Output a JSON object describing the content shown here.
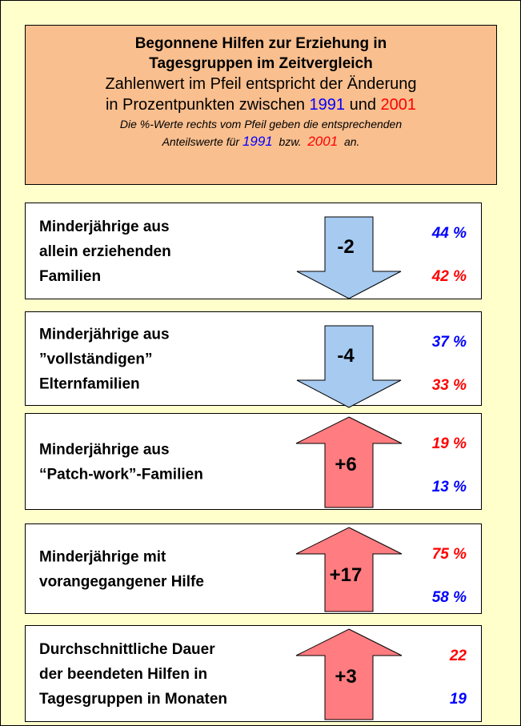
{
  "header": {
    "title": [
      "Begonnene Hilfen zur Erziehung in",
      "Tagesgruppen im Zeitvergleich"
    ],
    "subtitle_line1": "Zahlenwert im Pfeil entspricht der Änderung",
    "subtitle_line2": {
      "text": "in Prozentpunkten zwischen",
      "year1": "1991",
      "and": "und",
      "year2": "2001"
    },
    "note_line1": "Die %-Werte rechts vom Pfeil geben die entsprechenden",
    "note_line2": {
      "text": "Anteilswerte für",
      "year1": "1991",
      "or": "bzw.",
      "year2": "2001",
      "end": "an."
    },
    "year1_color": "#0000ff",
    "year2_color": "#ff0000"
  },
  "rows": [
    {
      "label": [
        "Minderjährige aus",
        "allein erziehenden",
        "Familien"
      ],
      "change": "-2",
      "arrow": "down",
      "top": "44 %",
      "top_color": "#0000ff",
      "bottom": "42 %",
      "bottom_color": "#ff0000"
    },
    {
      "label": [
        "Minderjährige aus",
        "”vollständigen”",
        "Elternfamilien"
      ],
      "change": "-4",
      "arrow": "down",
      "top": "37 %",
      "top_color": "#0000ff",
      "bottom": "33 %",
      "bottom_color": "#ff0000"
    },
    {
      "label": [
        "Minderjährige aus",
        "“Patch-work”-Familien"
      ],
      "change": "+6",
      "arrow": "up",
      "top": "19 %",
      "top_color": "#ff0000",
      "bottom": "13 %",
      "bottom_color": "#0000ff"
    },
    {
      "label": [
        "Minderjährige mit",
        "vorangegangener Hilfe"
      ],
      "change": "+17",
      "arrow": "up",
      "top": "75 %",
      "top_color": "#ff0000",
      "bottom": "58 %",
      "bottom_color": "#0000ff"
    },
    {
      "label": [
        "Durchschnittliche Dauer",
        "der beendeten Hilfen in",
        "Tagesgruppen in Monaten"
      ],
      "change": "+3",
      "arrow": "up",
      "top": "22",
      "top_color": "#ff0000",
      "bottom": "19",
      "bottom_color": "#0000ff"
    }
  ]
}
